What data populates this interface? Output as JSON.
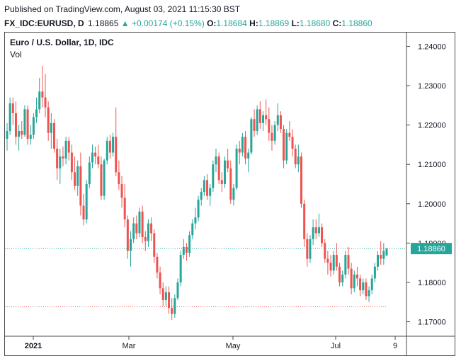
{
  "header": {
    "published": "Published on TradingView.com, August 03, 2021 11:15:30 BST",
    "symbol": "FX_IDC:EURUSD, D",
    "last": "1.18865",
    "change": "▲ +0.00174 (+0.15%)",
    "o_label": "O:",
    "o_val": "1.18684",
    "h_label": "H:",
    "h_val": "1.18869",
    "l_label": "L:",
    "l_val": "1.18680",
    "c_label": "C:",
    "c_val": "1.18860"
  },
  "legend": {
    "title": "Euro / U.S. Dollar, 1D, IDC",
    "volume_label": "Vol"
  },
  "colors": {
    "up": "#26a69a",
    "down": "#ef5350",
    "grid": "#e0e3eb",
    "text": "#131722",
    "price_tag": "#26a69a"
  },
  "chart_data": {
    "type": "candlestick",
    "title": "Euro / U.S. Dollar, 1D, IDC",
    "ylim": [
      1.1665,
      1.2435
    ],
    "y_ticks": [
      "1.24000",
      "1.23000",
      "1.22000",
      "1.21000",
      "1.20000",
      "1.19000",
      "1.18000",
      "1.17000"
    ],
    "x_ticks": [
      "2021",
      "Mar",
      "May",
      "Jul",
      "9"
    ],
    "last_price_label": "1.18860",
    "last_price": 1.1886,
    "low_marker": 1.1738,
    "candles": [
      [
        1.2165,
        1.2205,
        1.2135,
        1.2185
      ],
      [
        1.2185,
        1.227,
        1.2175,
        1.2255
      ],
      [
        1.2255,
        1.227,
        1.22,
        1.223
      ],
      [
        1.223,
        1.226,
        1.215,
        1.217
      ],
      [
        1.217,
        1.22,
        1.2135,
        1.2185
      ],
      [
        1.2185,
        1.221,
        1.2165,
        1.2175
      ],
      [
        1.2175,
        1.225,
        1.217,
        1.224
      ],
      [
        1.224,
        1.225,
        1.215,
        1.2165
      ],
      [
        1.2165,
        1.22,
        1.215,
        1.2175
      ],
      [
        1.2175,
        1.223,
        1.2165,
        1.222
      ],
      [
        1.222,
        1.227,
        1.2205,
        1.224
      ],
      [
        1.224,
        1.232,
        1.223,
        1.2285
      ],
      [
        1.2285,
        1.235,
        1.2245,
        1.227
      ],
      [
        1.227,
        1.233,
        1.222,
        1.2245
      ],
      [
        1.2245,
        1.226,
        1.216,
        1.218
      ],
      [
        1.218,
        1.223,
        1.214,
        1.2205
      ],
      [
        1.2205,
        1.2215,
        1.213,
        1.214
      ],
      [
        1.214,
        1.2165,
        1.206,
        1.209
      ],
      [
        1.209,
        1.214,
        1.205,
        1.212
      ],
      [
        1.212,
        1.2145,
        1.2095,
        1.2115
      ],
      [
        1.2115,
        1.217,
        1.21,
        1.216
      ],
      [
        1.216,
        1.217,
        1.211,
        1.213
      ],
      [
        1.213,
        1.215,
        1.206,
        1.208
      ],
      [
        1.208,
        1.212,
        1.2035,
        1.2045
      ],
      [
        1.2045,
        1.211,
        1.202,
        1.2095
      ],
      [
        1.2095,
        1.213,
        1.197,
        1.1995
      ],
      [
        1.1995,
        1.2025,
        1.1945,
        1.196
      ],
      [
        1.196,
        1.206,
        1.195,
        1.205
      ],
      [
        1.205,
        1.212,
        1.204,
        1.2105
      ],
      [
        1.2105,
        1.215,
        1.209,
        1.213
      ],
      [
        1.213,
        1.2145,
        1.21,
        1.212
      ],
      [
        1.212,
        1.215,
        1.209,
        1.21
      ],
      [
        1.21,
        1.212,
        1.201,
        1.202
      ],
      [
        1.202,
        1.2115,
        1.201,
        1.211
      ],
      [
        1.211,
        1.217,
        1.21,
        1.216
      ],
      [
        1.216,
        1.2175,
        1.2115,
        1.213
      ],
      [
        1.213,
        1.218,
        1.212,
        1.217
      ],
      [
        1.217,
        1.2245,
        1.207,
        1.208
      ],
      [
        1.208,
        1.211,
        1.2035,
        1.205
      ],
      [
        1.205,
        1.207,
        1.199,
        1.2015
      ],
      [
        1.2015,
        1.205,
        1.194,
        1.196
      ],
      [
        1.196,
        1.197,
        1.186,
        1.188
      ],
      [
        1.188,
        1.193,
        1.184,
        1.191
      ],
      [
        1.191,
        1.1965,
        1.19,
        1.195
      ],
      [
        1.195,
        1.197,
        1.191,
        1.1925
      ],
      [
        1.1925,
        1.199,
        1.1915,
        1.198
      ],
      [
        1.198,
        1.1995,
        1.19,
        1.1915
      ],
      [
        1.1915,
        1.193,
        1.188,
        1.1905
      ],
      [
        1.1905,
        1.196,
        1.189,
        1.195
      ],
      [
        1.195,
        1.1965,
        1.1905,
        1.1925
      ],
      [
        1.1925,
        1.1935,
        1.185,
        1.1865
      ],
      [
        1.1865,
        1.1875,
        1.181,
        1.1825
      ],
      [
        1.1825,
        1.184,
        1.177,
        1.1785
      ],
      [
        1.1785,
        1.18,
        1.174,
        1.1755
      ],
      [
        1.1755,
        1.179,
        1.174,
        1.1775
      ],
      [
        1.1775,
        1.179,
        1.172,
        1.1735
      ],
      [
        1.1735,
        1.176,
        1.1705,
        1.172
      ],
      [
        1.172,
        1.177,
        1.171,
        1.176
      ],
      [
        1.176,
        1.181,
        1.1755,
        1.18
      ],
      [
        1.18,
        1.188,
        1.179,
        1.187
      ],
      [
        1.187,
        1.191,
        1.186,
        1.189
      ],
      [
        1.189,
        1.19,
        1.1855,
        1.1875
      ],
      [
        1.1875,
        1.193,
        1.1865,
        1.192
      ],
      [
        1.192,
        1.196,
        1.191,
        1.195
      ],
      [
        1.195,
        1.199,
        1.1935,
        1.1965
      ],
      [
        1.1965,
        1.202,
        1.1955,
        1.201
      ],
      [
        1.201,
        1.204,
        1.1995,
        1.203
      ],
      [
        1.203,
        1.207,
        1.202,
        1.206
      ],
      [
        1.206,
        1.2075,
        1.201,
        1.202
      ],
      [
        1.202,
        1.205,
        1.1995,
        1.204
      ],
      [
        1.204,
        1.211,
        1.203,
        1.21
      ],
      [
        1.21,
        1.214,
        1.208,
        1.212
      ],
      [
        1.212,
        1.213,
        1.205,
        1.206
      ],
      [
        1.206,
        1.208,
        1.203,
        1.205
      ],
      [
        1.205,
        1.212,
        1.204,
        1.211
      ],
      [
        1.211,
        1.214,
        1.208,
        1.209
      ],
      [
        1.209,
        1.211,
        1.2,
        1.201
      ],
      [
        1.201,
        1.205,
        1.1995,
        1.204
      ],
      [
        1.204,
        1.215,
        1.2035,
        1.214
      ],
      [
        1.214,
        1.216,
        1.21,
        1.213
      ],
      [
        1.213,
        1.218,
        1.212,
        1.217
      ],
      [
        1.217,
        1.2185,
        1.21,
        1.2115
      ],
      [
        1.2115,
        1.214,
        1.208,
        1.213
      ],
      [
        1.213,
        1.222,
        1.2125,
        1.2215
      ],
      [
        1.2215,
        1.224,
        1.217,
        1.2185
      ],
      [
        1.2185,
        1.225,
        1.2175,
        1.224
      ],
      [
        1.224,
        1.226,
        1.219,
        1.2205
      ],
      [
        1.2205,
        1.2235,
        1.2185,
        1.2225
      ],
      [
        1.2225,
        1.2265,
        1.22,
        1.2215
      ],
      [
        1.2215,
        1.2245,
        1.216,
        1.218
      ],
      [
        1.218,
        1.22,
        1.2135,
        1.216
      ],
      [
        1.216,
        1.221,
        1.215,
        1.22
      ],
      [
        1.22,
        1.2255,
        1.2185,
        1.2225
      ],
      [
        1.2225,
        1.2235,
        1.218,
        1.219
      ],
      [
        1.219,
        1.22,
        1.209,
        1.211
      ],
      [
        1.211,
        1.219,
        1.21,
        1.218
      ],
      [
        1.218,
        1.221,
        1.216,
        1.217
      ],
      [
        1.217,
        1.219,
        1.212,
        1.214
      ],
      [
        1.214,
        1.215,
        1.209,
        1.21
      ],
      [
        1.21,
        1.215,
        1.208,
        1.212
      ],
      [
        1.212,
        1.213,
        1.199,
        1.2
      ],
      [
        1.2,
        1.201,
        1.189,
        1.191
      ],
      [
        1.191,
        1.1925,
        1.184,
        1.186
      ],
      [
        1.186,
        1.192,
        1.185,
        1.191
      ],
      [
        1.191,
        1.196,
        1.1895,
        1.194
      ],
      [
        1.194,
        1.196,
        1.191,
        1.1925
      ],
      [
        1.1925,
        1.1975,
        1.1915,
        1.194
      ],
      [
        1.194,
        1.195,
        1.189,
        1.19
      ],
      [
        1.19,
        1.191,
        1.185,
        1.186
      ],
      [
        1.186,
        1.188,
        1.182,
        1.185
      ],
      [
        1.185,
        1.187,
        1.1815,
        1.183
      ],
      [
        1.183,
        1.188,
        1.182,
        1.187
      ],
      [
        1.187,
        1.19,
        1.183,
        1.184
      ],
      [
        1.184,
        1.185,
        1.179,
        1.18
      ],
      [
        1.18,
        1.183,
        1.179,
        1.182
      ],
      [
        1.182,
        1.188,
        1.181,
        1.187
      ],
      [
        1.187,
        1.189,
        1.182,
        1.1835
      ],
      [
        1.1835,
        1.185,
        1.177,
        1.1785
      ],
      [
        1.1785,
        1.183,
        1.1775,
        1.182
      ],
      [
        1.182,
        1.184,
        1.179,
        1.181
      ],
      [
        1.181,
        1.182,
        1.1765,
        1.178
      ],
      [
        1.178,
        1.181,
        1.177,
        1.18
      ],
      [
        1.18,
        1.181,
        1.1755,
        1.1765
      ],
      [
        1.1765,
        1.179,
        1.175,
        1.178
      ],
      [
        1.178,
        1.182,
        1.177,
        1.181
      ],
      [
        1.181,
        1.185,
        1.18,
        1.184
      ],
      [
        1.184,
        1.188,
        1.183,
        1.187
      ],
      [
        1.187,
        1.1905,
        1.1845,
        1.186
      ],
      [
        1.186,
        1.19,
        1.1845,
        1.188
      ],
      [
        1.1868,
        1.1887,
        1.1868,
        1.1886
      ]
    ]
  }
}
